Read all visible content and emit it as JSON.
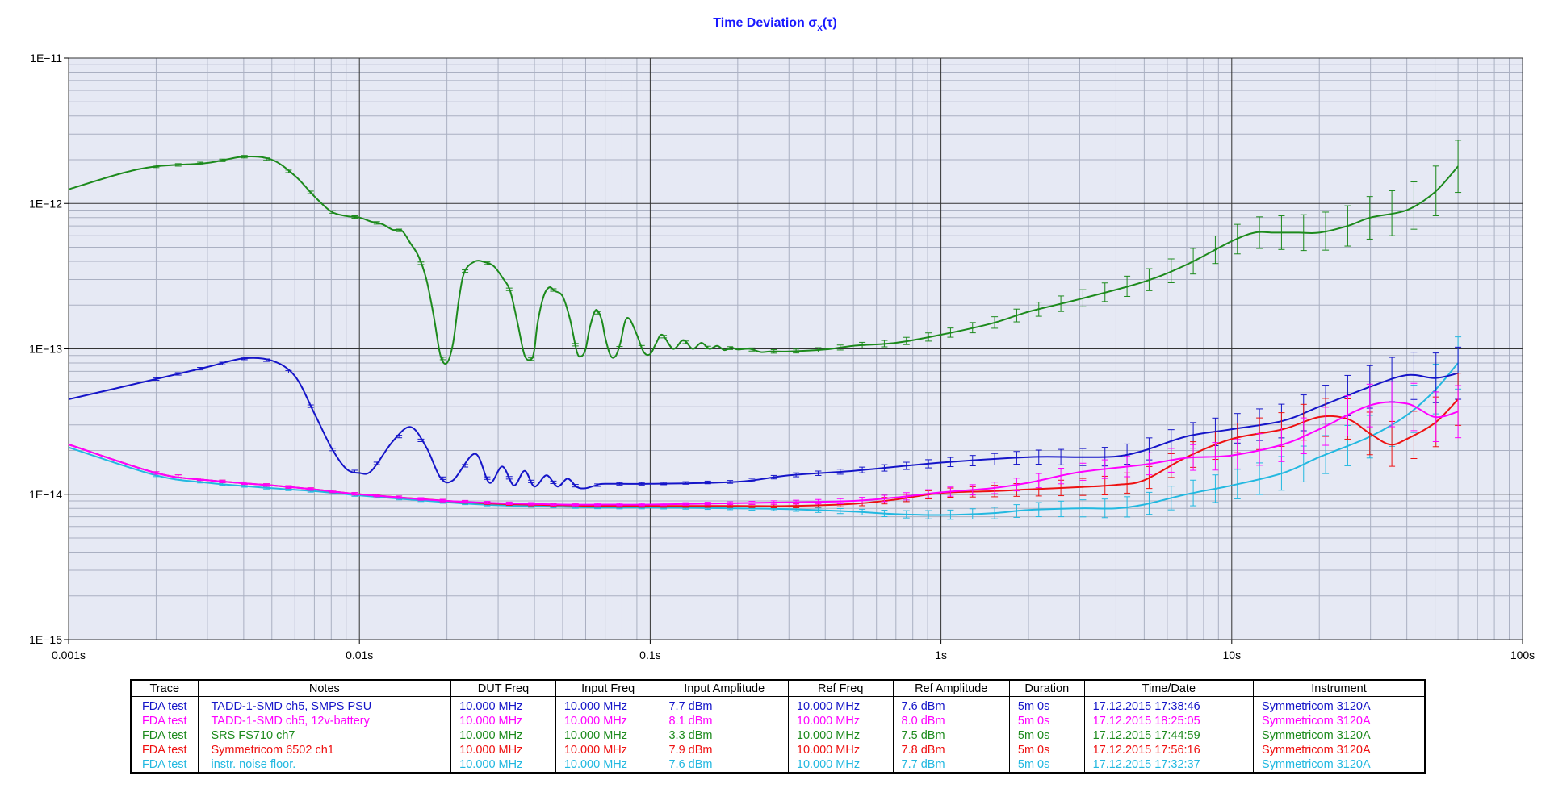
{
  "chart_data": {
    "type": "line",
    "title": "Time Deviation σx(τ)",
    "title_main": "Time Deviation σ",
    "title_sub": "x",
    "title_tail": "(τ)",
    "xscale": "log",
    "yscale": "log",
    "xlim": [
      0.001,
      100
    ],
    "ylim": [
      1e-15,
      1e-11
    ],
    "x_tick_labels": [
      "0.001s",
      "0.01s",
      "0.1s",
      "1s",
      "10s",
      "100s"
    ],
    "y_tick_labels": [
      "1E−11",
      "1E−12",
      "1E−13",
      "1E−14",
      "1E−15"
    ],
    "grid": true,
    "background": "#e6e9f4",
    "series": [
      {
        "name": "TADD-1-SMD ch5, SMPS PSU",
        "color": "#1515c8",
        "x": [
          0.001,
          0.002,
          0.003,
          0.004,
          0.005,
          0.006,
          0.007,
          0.008,
          0.009,
          0.01,
          0.011,
          0.013,
          0.015,
          0.017,
          0.019,
          0.021,
          0.025,
          0.028,
          0.031,
          0.034,
          0.037,
          0.04,
          0.044,
          0.048,
          0.052,
          0.056,
          0.06,
          0.065,
          0.07,
          0.1,
          0.2,
          0.3,
          0.5,
          1,
          2,
          3,
          4,
          5,
          7,
          10,
          15,
          20,
          30,
          40,
          50,
          60
        ],
        "y": [
          4.5e-14,
          6.2e-14,
          7.5e-14,
          8.6e-14,
          8.3e-14,
          6.5e-14,
          3.6e-14,
          2.1e-14,
          1.5e-14,
          1.4e-14,
          1.45e-14,
          2.3e-14,
          2.9e-14,
          2.1e-14,
          1.3e-14,
          1.25e-14,
          1.9e-14,
          1.2e-14,
          1.55e-14,
          1.15e-14,
          1.45e-14,
          1.13e-14,
          1.35e-14,
          1.13e-14,
          1.28e-14,
          1.12e-14,
          1.1e-14,
          1.15e-14,
          1.18e-14,
          1.18e-14,
          1.22e-14,
          1.35e-14,
          1.45e-14,
          1.65e-14,
          1.8e-14,
          1.8e-14,
          1.82e-14,
          2e-14,
          2.5e-14,
          2.8e-14,
          3.2e-14,
          4e-14,
          5.5e-14,
          6.6e-14,
          6.3e-14,
          6.8e-14
        ]
      },
      {
        "name": "TADD-1-SMD ch5, 12v-battery",
        "color": "#ff00ff",
        "x": [
          0.001,
          0.002,
          0.003,
          0.005,
          0.007,
          0.01,
          0.02,
          0.03,
          0.05,
          0.07,
          0.1,
          0.2,
          0.3,
          0.5,
          0.7,
          1,
          1.5,
          2,
          3,
          5,
          7,
          10,
          15,
          20,
          30,
          40,
          50,
          60
        ],
        "y": [
          2.2e-14,
          1.4e-14,
          1.25e-14,
          1.15e-14,
          1.08e-14,
          1e-14,
          9e-15,
          8.7e-15,
          8.5e-15,
          8.5e-15,
          8.5e-15,
          8.7e-15,
          8.8e-15,
          9e-15,
          9.5e-15,
          1.03e-14,
          1.1e-14,
          1.2e-14,
          1.42e-14,
          1.6e-14,
          1.78e-14,
          1.85e-14,
          2.2e-14,
          2.8e-14,
          4.1e-14,
          4.2e-14,
          3.4e-14,
          3.7e-14
        ]
      },
      {
        "name": "SRS FS710 ch7",
        "color": "#1c8a1c",
        "x": [
          0.001,
          0.0015,
          0.002,
          0.003,
          0.004,
          0.005,
          0.006,
          0.007,
          0.008,
          0.009,
          0.01,
          0.011,
          0.012,
          0.013,
          0.014,
          0.015,
          0.016,
          0.017,
          0.018,
          0.019,
          0.02,
          0.021,
          0.022,
          0.023,
          0.025,
          0.027,
          0.029,
          0.031,
          0.033,
          0.035,
          0.037,
          0.039,
          0.04,
          0.041,
          0.043,
          0.045,
          0.047,
          0.05,
          0.053,
          0.056,
          0.058,
          0.06,
          0.062,
          0.065,
          0.068,
          0.07,
          0.073,
          0.076,
          0.079,
          0.082,
          0.085,
          0.09,
          0.095,
          0.1,
          0.105,
          0.11,
          0.12,
          0.13,
          0.14,
          0.15,
          0.16,
          0.17,
          0.18,
          0.19,
          0.2,
          0.22,
          0.24,
          0.26,
          0.3,
          0.4,
          0.5,
          0.7,
          1,
          1.5,
          2,
          3,
          5,
          7,
          10,
          12,
          14,
          17,
          20,
          25,
          30,
          40,
          50,
          60
        ],
        "y": [
          1.25e-12,
          1.6e-12,
          1.8e-12,
          1.9e-12,
          2.1e-12,
          2e-12,
          1.55e-12,
          1.12e-12,
          8.8e-13,
          8.2e-13,
          8e-13,
          7.5e-13,
          7.2e-13,
          6.6e-13,
          6.5e-13,
          5.3e-13,
          4.3e-13,
          3e-13,
          1.7e-13,
          9e-14,
          8e-14,
          1.1e-13,
          2.2e-13,
          3.4e-13,
          4e-13,
          3.95e-13,
          3.7e-13,
          3.1e-13,
          2.5e-13,
          1.5e-13,
          9e-14,
          8.5e-14,
          1e-13,
          1.5e-13,
          2.3e-13,
          2.65e-13,
          2.5e-13,
          2.3e-13,
          1.6e-13,
          9.5e-14,
          8.9e-14,
          1e-13,
          1.4e-13,
          1.85e-13,
          1.6e-13,
          1.2e-13,
          9e-14,
          8.9e-14,
          1.1e-13,
          1.55e-13,
          1.6e-13,
          1.25e-13,
          9.5e-14,
          9.2e-14,
          1.1e-13,
          1.25e-13,
          1e-13,
          1.15e-13,
          1e-13,
          1.1e-13,
          1e-13,
          1.05e-13,
          9.8e-14,
          1.02e-13,
          9.9e-14,
          1e-13,
          9.5e-14,
          9.6e-14,
          9.6e-14,
          9.9e-14,
          1.05e-13,
          1.1e-13,
          1.25e-13,
          1.5e-13,
          1.8e-13,
          2.2e-13,
          2.9e-13,
          3.8e-13,
          5.5e-13,
          6.3e-13,
          6.3e-13,
          6.3e-13,
          6.3e-13,
          7e-13,
          8e-13,
          9e-13,
          1.2e-12,
          1.8e-12
        ]
      },
      {
        "name": "Symmetricom 6502 ch1",
        "color": "#ee1111",
        "x": [
          0.001,
          0.002,
          0.003,
          0.005,
          0.007,
          0.01,
          0.02,
          0.03,
          0.05,
          0.07,
          0.1,
          0.2,
          0.3,
          0.5,
          0.7,
          1,
          1.5,
          2,
          3,
          4,
          5,
          7,
          10,
          15,
          20,
          25,
          30,
          35,
          40,
          50,
          60
        ],
        "y": [
          2.2e-14,
          1.4e-14,
          1.25e-14,
          1.15e-14,
          1.08e-14,
          1e-14,
          9e-15,
          8.6e-15,
          8.4e-15,
          8.3e-15,
          8.3e-15,
          8.3e-15,
          8.3e-15,
          8.6e-15,
          9.2e-15,
          1.02e-14,
          1.05e-14,
          1.08e-14,
          1.12e-14,
          1.16e-14,
          1.25e-14,
          1.8e-14,
          2.4e-14,
          2.8e-14,
          3.4e-14,
          3.3e-14,
          2.6e-14,
          2.2e-14,
          2.4e-14,
          3.1e-14,
          4.5e-14
        ]
      },
      {
        "name": "instr. noise floor.",
        "color": "#22b8e0",
        "x": [
          0.001,
          0.002,
          0.003,
          0.005,
          0.007,
          0.01,
          0.02,
          0.03,
          0.05,
          0.07,
          0.1,
          0.2,
          0.3,
          0.5,
          0.7,
          1,
          1.5,
          2,
          3,
          4,
          5,
          7,
          10,
          15,
          20,
          30,
          40,
          50,
          60
        ],
        "y": [
          2.1e-14,
          1.35e-14,
          1.2e-14,
          1.1e-14,
          1.05e-14,
          9.8e-15,
          8.8e-15,
          8.4e-15,
          8.2e-15,
          8.1e-15,
          8.1e-15,
          8e-15,
          7.9e-15,
          7.6e-15,
          7.3e-15,
          7.2e-15,
          7.4e-15,
          7.8e-15,
          8e-15,
          8e-15,
          8.5e-15,
          1e-14,
          1.15e-14,
          1.4e-14,
          1.8e-14,
          2.5e-14,
          3.5e-14,
          5.2e-14,
          8e-14
        ]
      }
    ]
  },
  "legend_table": {
    "headers": [
      "Trace",
      "Notes",
      "DUT Freq",
      "Input Freq",
      "Input Amplitude",
      "Ref Freq",
      "Ref Amplitude",
      "Duration",
      "Time/Date",
      "Instrument"
    ],
    "rows": [
      {
        "color": "#1515c8",
        "cells": [
          "FDA test",
          "TADD-1-SMD  ch5, SMPS PSU",
          "10.000 MHz",
          "10.000 MHz",
          "7.7 dBm",
          "10.000 MHz",
          "7.6 dBm",
          "5m 0s",
          "17.12.2015 17:38:46",
          "Symmetricom 3120A"
        ]
      },
      {
        "color": "#ff00ff",
        "cells": [
          "FDA test",
          "TADD-1-SMD ch5, 12v-battery",
          "10.000 MHz",
          "10.000 MHz",
          "8.1 dBm",
          "10.000 MHz",
          "8.0 dBm",
          "5m 0s",
          "17.12.2015 18:25:05",
          "Symmetricom 3120A"
        ]
      },
      {
        "color": "#1c8a1c",
        "cells": [
          "FDA test",
          "SRS FS710 ch7",
          "10.000 MHz",
          "10.000 MHz",
          "3.3 dBm",
          "10.000 MHz",
          "7.5 dBm",
          "5m 0s",
          "17.12.2015 17:44:59",
          "Symmetricom 3120A"
        ]
      },
      {
        "color": "#ee1111",
        "cells": [
          "FDA test",
          "Symmetricom 6502 ch1",
          "10.000 MHz",
          "10.000 MHz",
          "7.9 dBm",
          "10.000 MHz",
          "7.8 dBm",
          "5m 0s",
          "17.12.2015 17:56:16",
          "Symmetricom 3120A"
        ]
      },
      {
        "color": "#22b8e0",
        "cells": [
          "FDA test",
          "instr. noise floor.",
          "10.000 MHz",
          "10.000 MHz",
          "7.6 dBm",
          "10.000 MHz",
          "7.7 dBm",
          "5m 0s",
          "17.12.2015 17:32:37",
          "Symmetricom 3120A"
        ]
      }
    ]
  }
}
